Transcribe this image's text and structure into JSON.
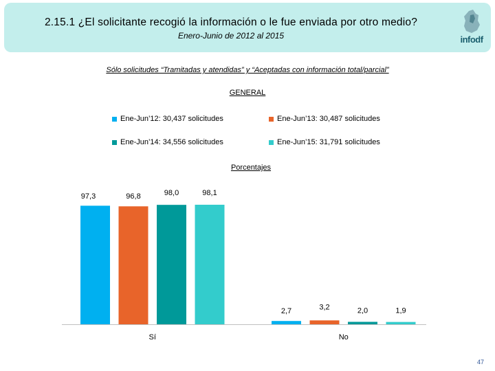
{
  "header": {
    "title": "2.15.1 ¿El solicitante recogió la información o le fue enviada por otro medio?",
    "subtitle": "Enero-Junio de 2012 al 2015",
    "logo_text": "infodf"
  },
  "note": "Sólo solicitudes “Tramitadas y atendidas” y “Aceptadas con información total/parcial”",
  "section_label": "GENERAL",
  "units_label": "Porcentajes",
  "page_number": "47",
  "colors": {
    "header_bg": "#c3eeec",
    "series": [
      "#00b0f0",
      "#e8642a",
      "#009999",
      "#33cccc"
    ]
  },
  "chart_data": {
    "type": "bar",
    "categories": [
      "Sí",
      "No"
    ],
    "series": [
      {
        "name": "Ene-Jun’12: 30,437 solicitudes",
        "values": [
          97.3,
          2.7
        ],
        "labels": [
          "97,3",
          "2,7"
        ]
      },
      {
        "name": "Ene-Jun’13: 30,487 solicitudes",
        "values": [
          96.8,
          3.2
        ],
        "labels": [
          "96,8",
          "3,2"
        ]
      },
      {
        "name": "Ene-Jun’14: 34,556 solicitudes",
        "values": [
          98.0,
          2.0
        ],
        "labels": [
          "98,0",
          "2,0"
        ]
      },
      {
        "name": "Ene-Jun’15: 31,791 solicitudes",
        "values": [
          98.1,
          1.9
        ],
        "labels": [
          "98,1",
          "1,9"
        ]
      }
    ],
    "ylim": [
      0,
      100
    ],
    "grid": false,
    "legend_position": "top"
  }
}
